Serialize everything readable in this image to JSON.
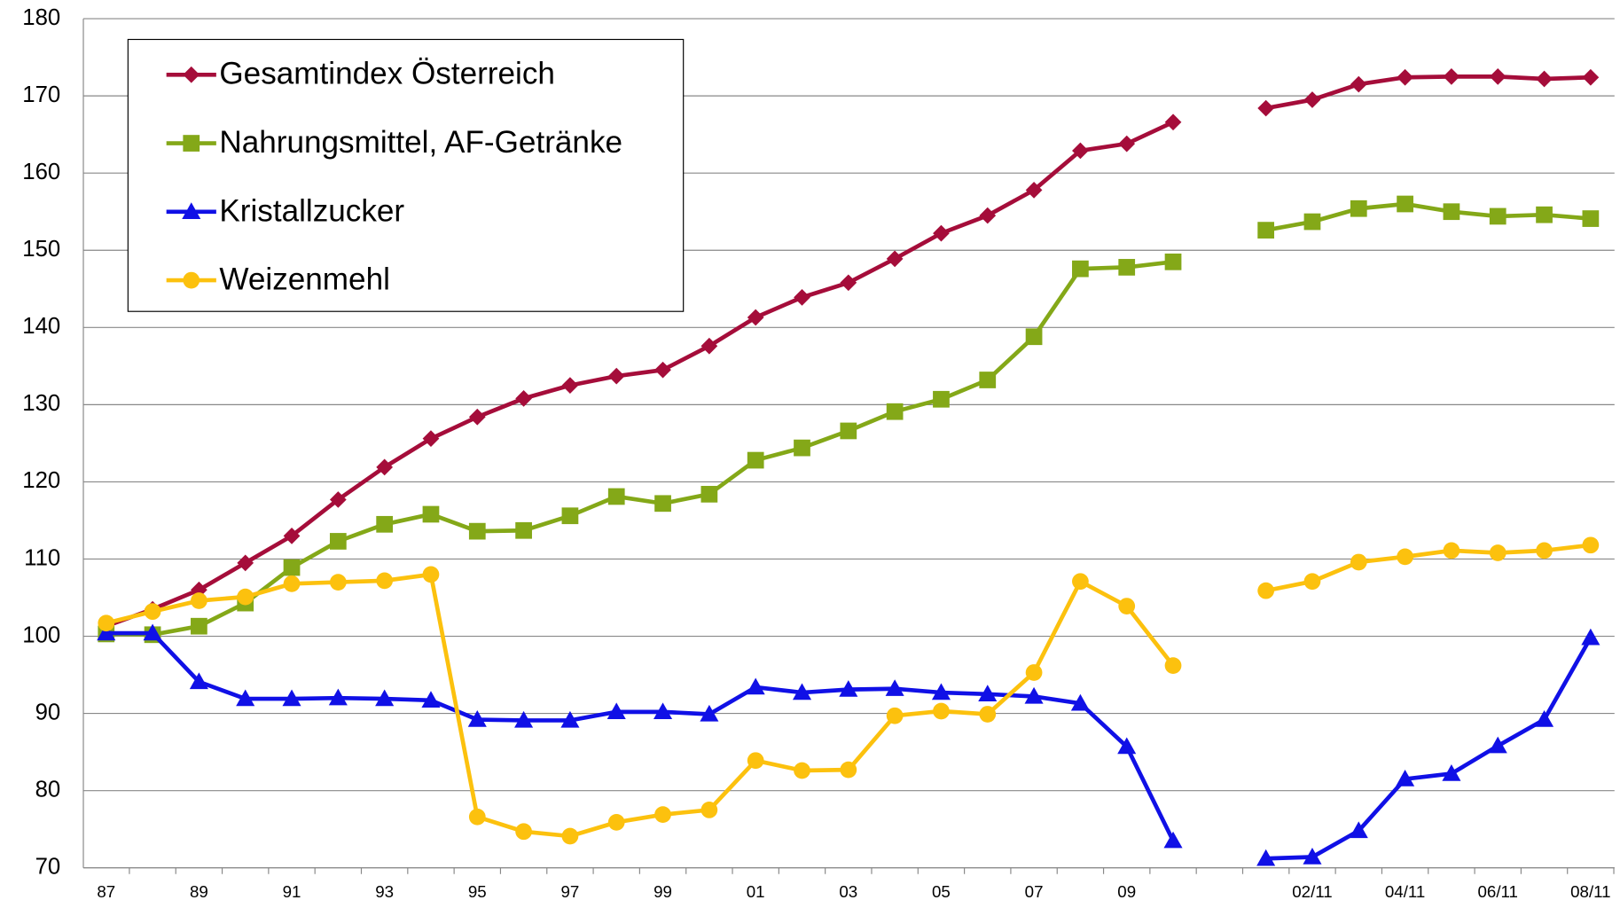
{
  "chart_data": {
    "type": "line",
    "categories": [
      "87",
      null,
      "89",
      null,
      "91",
      null,
      "93",
      null,
      "95",
      null,
      "97",
      null,
      "99",
      null,
      "01",
      null,
      "03",
      null,
      "05",
      null,
      "07",
      null,
      "09",
      null,
      null,
      null,
      "02/11",
      null,
      "04/11",
      null,
      "06/11",
      null,
      "08/11"
    ],
    "series": [
      {
        "name": "Gesamtindex Österreich",
        "color": "#a50d3a",
        "marker": "diamond",
        "values": [
          101.3,
          103.5,
          106,
          109.5,
          113,
          117.7,
          121.9,
          125.6,
          128.4,
          130.8,
          132.5,
          133.7,
          134.5,
          137.6,
          141.3,
          143.9,
          145.8,
          148.9,
          152.2,
          154.5,
          157.8,
          162.9,
          163.8,
          166.6,
          null,
          168.4,
          169.5,
          171.5,
          172.4,
          172.5,
          172.5,
          172.2,
          172.4
        ]
      },
      {
        "name": "Nahrungsmittel, AF-Getränke",
        "color": "#84a818",
        "marker": "square",
        "values": [
          100.3,
          100.2,
          101.3,
          104.3,
          108.9,
          112.3,
          114.5,
          115.8,
          113.6,
          113.7,
          115.6,
          118.1,
          117.2,
          118.4,
          122.8,
          124.4,
          126.6,
          129.1,
          130.7,
          133.2,
          138.8,
          147.6,
          147.8,
          148.5,
          null,
          152.6,
          153.7,
          155.4,
          156,
          155,
          154.4,
          154.6,
          154.1
        ]
      },
      {
        "name": "Kristallzucker",
        "color": "#1010e6",
        "marker": "triangle",
        "values": [
          100.4,
          100.4,
          94.1,
          91.9,
          91.9,
          92,
          91.9,
          91.7,
          89.2,
          89.1,
          89.1,
          90.2,
          90.2,
          89.9,
          93.4,
          92.7,
          93.1,
          93.2,
          92.7,
          92.5,
          92.2,
          91.3,
          85.7,
          73.5,
          null,
          71.2,
          71.4,
          74.8,
          81.5,
          82.2,
          85.8,
          89.2,
          99.8
        ]
      },
      {
        "name": "Weizenmehl",
        "color": "#fcc10e",
        "marker": "circle",
        "values": [
          101.7,
          103.2,
          104.6,
          105.1,
          106.8,
          107,
          107.2,
          108,
          76.6,
          74.7,
          74.1,
          75.9,
          76.9,
          77.5,
          83.9,
          82.6,
          82.7,
          89.7,
          90.3,
          89.9,
          95.3,
          107.1,
          103.9,
          96.2,
          null,
          105.9,
          107.1,
          109.6,
          110.3,
          111.1,
          110.8,
          111.1,
          111.8
        ]
      }
    ],
    "ylim": [
      70,
      180
    ],
    "yticks": [
      70,
      80,
      90,
      100,
      110,
      120,
      130,
      140,
      150,
      160,
      170,
      180
    ],
    "grid": true,
    "legend": "top-left"
  }
}
